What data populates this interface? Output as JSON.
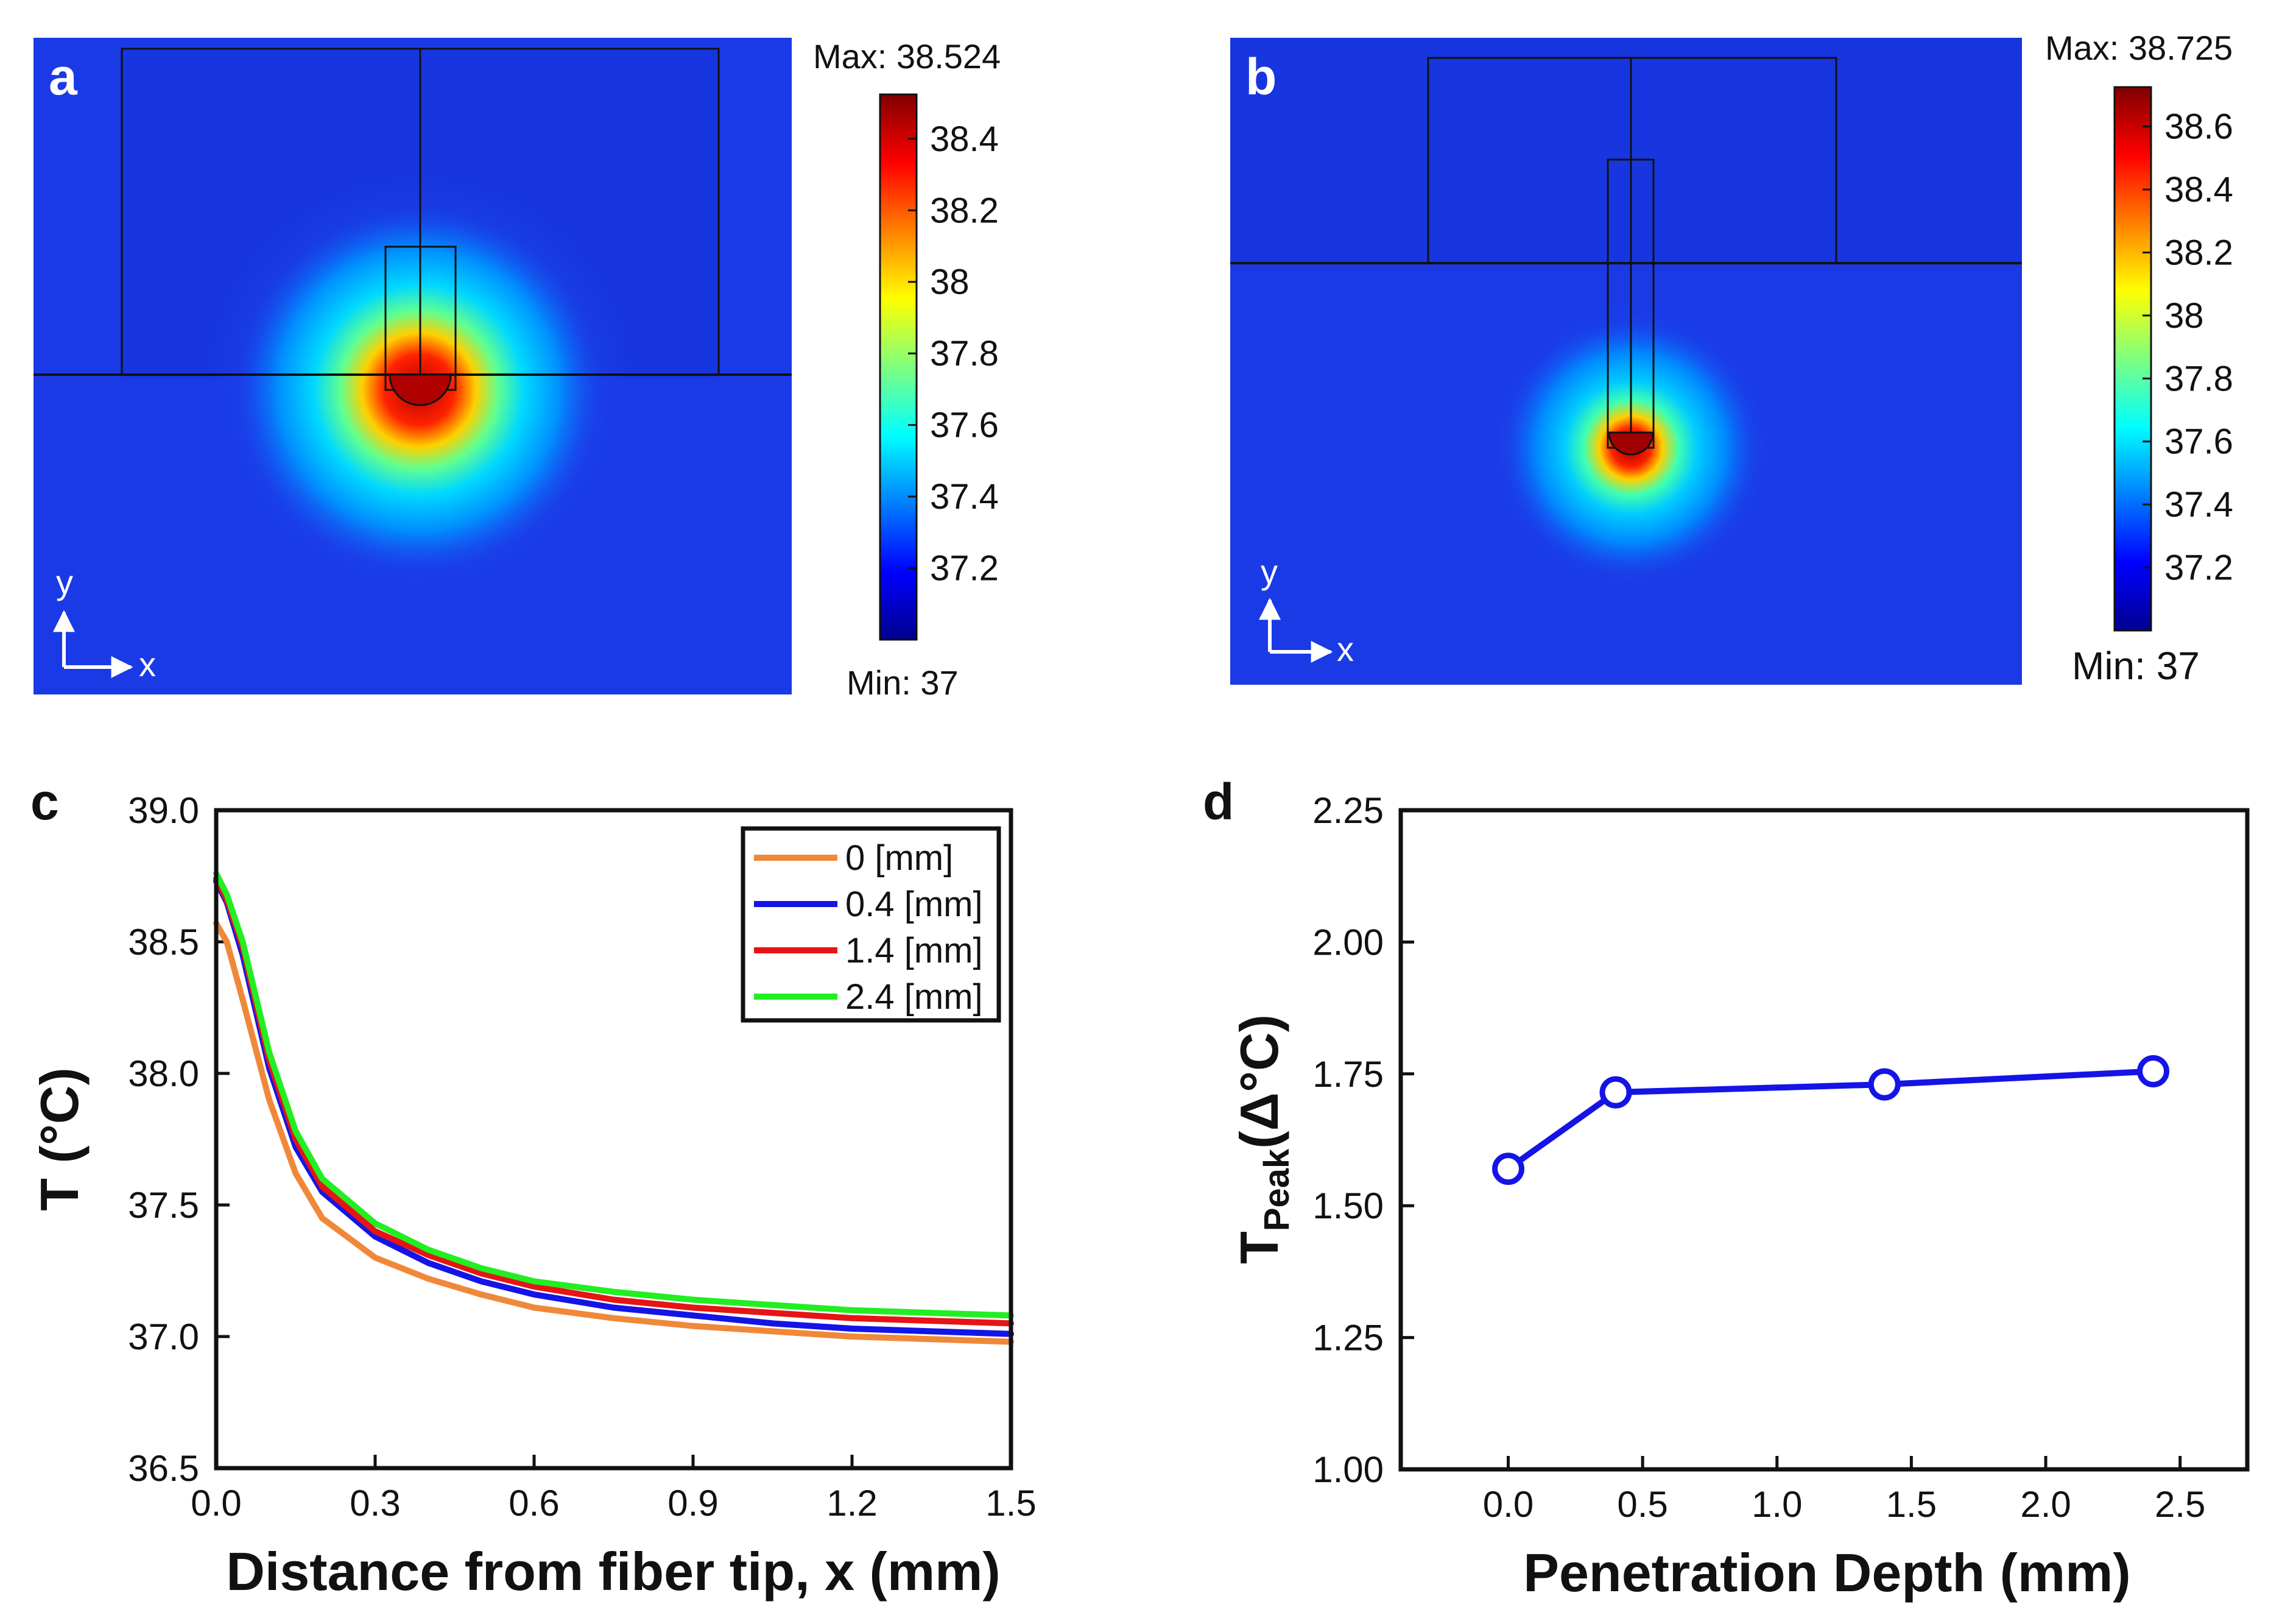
{
  "panels": {
    "a": {
      "label": "a",
      "max_label": "Max: 38.524",
      "min_label": "Min: 37",
      "colorbar_range": [
        37.0,
        38.524
      ],
      "colorbar_ticks": [
        "38.4",
        "38.2",
        "38",
        "37.8",
        "37.6",
        "37.4",
        "37.2"
      ],
      "colorbar_tick_values": [
        38.4,
        38.2,
        38.0,
        37.8,
        37.6,
        37.4,
        37.2
      ],
      "axis_x": "x",
      "axis_y": "y"
    },
    "b": {
      "label": "b",
      "max_label": "Max: 38.725",
      "min_label": "Min: 37",
      "colorbar_range": [
        37.0,
        38.725
      ],
      "colorbar_ticks": [
        "38.6",
        "38.4",
        "38.2",
        "38",
        "37.8",
        "37.6",
        "37.4",
        "37.2"
      ],
      "colorbar_tick_values": [
        38.6,
        38.4,
        38.2,
        38.0,
        37.8,
        37.6,
        37.4,
        37.2
      ],
      "axis_x": "x",
      "axis_y": "y"
    },
    "c": {
      "label": "c"
    },
    "d": {
      "label": "d"
    }
  },
  "chart_data": [
    {
      "panel": "c",
      "type": "line",
      "xlabel": "Distance from fiber tip, x (mm)",
      "ylabel": "T (°C)",
      "xlim": [
        0.0,
        1.5
      ],
      "ylim": [
        36.5,
        39.0
      ],
      "xticks": [
        "0.0",
        "0.3",
        "0.6",
        "0.9",
        "1.2",
        "1.5"
      ],
      "xtick_values": [
        0.0,
        0.3,
        0.6,
        0.9,
        1.2,
        1.5
      ],
      "yticks": [
        "36.5",
        "37.0",
        "37.5",
        "38.0",
        "38.5",
        "39.0"
      ],
      "ytick_values": [
        36.5,
        37.0,
        37.5,
        38.0,
        38.5,
        39.0
      ],
      "legend_position": "top-right",
      "x": [
        0.0,
        0.02,
        0.05,
        0.1,
        0.15,
        0.2,
        0.3,
        0.4,
        0.5,
        0.6,
        0.75,
        0.9,
        1.05,
        1.2,
        1.35,
        1.5
      ],
      "series": [
        {
          "name": "0 [mm]",
          "color": "#f0883a",
          "values": [
            38.57,
            38.5,
            38.28,
            37.9,
            37.62,
            37.45,
            37.3,
            37.22,
            37.16,
            37.11,
            37.07,
            37.04,
            37.02,
            37.0,
            36.99,
            36.98
          ]
        },
        {
          "name": "0.4 [mm]",
          "color": "#1414e6",
          "values": [
            38.73,
            38.65,
            38.45,
            38.02,
            37.72,
            37.55,
            37.38,
            37.28,
            37.21,
            37.16,
            37.11,
            37.08,
            37.05,
            37.03,
            37.02,
            37.01
          ]
        },
        {
          "name": "1.4 [mm]",
          "color": "#e61414",
          "values": [
            38.74,
            38.66,
            38.48,
            38.05,
            37.75,
            37.57,
            37.4,
            37.31,
            37.24,
            37.19,
            37.14,
            37.11,
            37.09,
            37.07,
            37.06,
            37.05
          ]
        },
        {
          "name": "2.4 [mm]",
          "color": "#22ee22",
          "values": [
            38.76,
            38.68,
            38.5,
            38.08,
            37.78,
            37.6,
            37.43,
            37.33,
            37.26,
            37.21,
            37.17,
            37.14,
            37.12,
            37.1,
            37.09,
            37.08
          ]
        }
      ]
    },
    {
      "panel": "d",
      "type": "line",
      "xlabel": "Penetration Depth (mm)",
      "ylabel_main": "T",
      "ylabel_sub": "Peak",
      "ylabel_unit": "(Δ°C)",
      "xlim": [
        -0.4,
        2.75
      ],
      "ylim": [
        1.0,
        2.25
      ],
      "xticks": [
        "0.0",
        "0.5",
        "1.0",
        "1.5",
        "2.0",
        "2.5"
      ],
      "xtick_values": [
        0.0,
        0.5,
        1.0,
        1.5,
        2.0,
        2.5
      ],
      "yticks": [
        "1.00",
        "1.25",
        "1.50",
        "1.75",
        "2.00",
        "2.25"
      ],
      "ytick_values": [
        1.0,
        1.25,
        1.5,
        1.75,
        2.0,
        2.25
      ],
      "series": [
        {
          "name": "T_Peak",
          "color": "#1414e6",
          "x": [
            0.0,
            0.4,
            1.4,
            2.4
          ],
          "values": [
            1.57,
            1.715,
            1.73,
            1.755
          ]
        }
      ]
    }
  ]
}
